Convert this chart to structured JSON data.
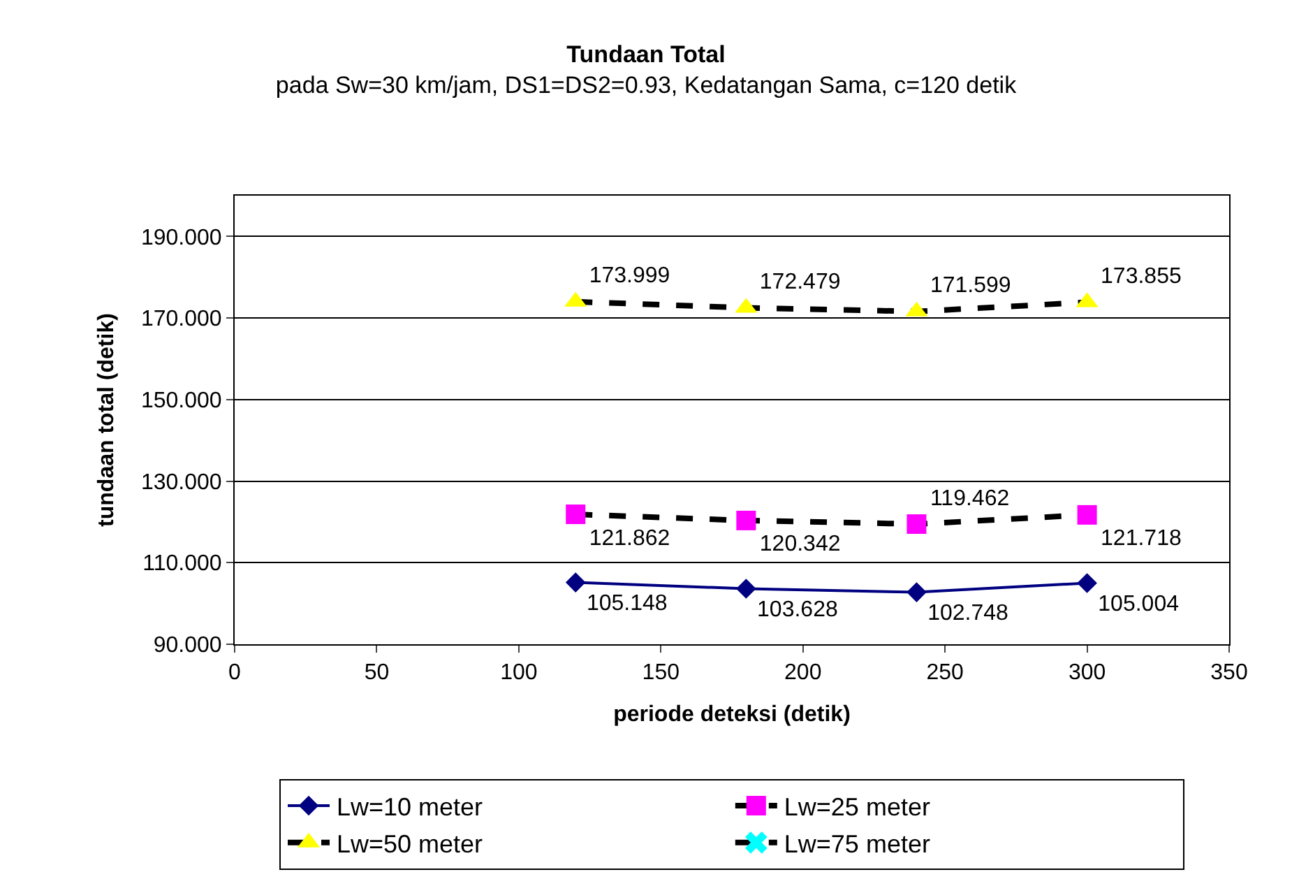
{
  "chart_data": {
    "type": "line",
    "title": "Tundaan Total",
    "subtitle": "pada Sw=30 km/jam, DS1=DS2=0.93, Kedatangan Sama, c=120 detik",
    "xlabel": "periode deteksi (detik)",
    "ylabel": "tundaan total (detik)",
    "x": [
      120,
      180,
      240,
      300
    ],
    "series": [
      {
        "name": "Lw=10 meter",
        "color": "#000080",
        "colors": [
          "#000080",
          "#000080",
          "#000080",
          "#000080"
        ],
        "marker": "diamond",
        "line_style": "solid",
        "values": [
          105.148,
          103.628,
          102.748,
          105.004
        ]
      },
      {
        "name": "Lw=25 meter",
        "color": "#000000",
        "colors": [
          "#ff00ff",
          "#ff00ff",
          "#ff00ff",
          "#ff00ff"
        ],
        "marker": "square",
        "line_style": "dashed",
        "values": [
          121.862,
          120.342,
          119.462,
          121.718
        ]
      },
      {
        "name": "Lw=50 meter",
        "color": "#000000",
        "colors": [
          "#ffff00",
          "#ffff00",
          "#ffff00",
          "#ffff00"
        ],
        "marker": "triangle",
        "line_style": "dashed",
        "values": [
          173.999,
          172.479,
          171.599,
          173.855
        ]
      },
      {
        "name": "Lw=75 meter",
        "color": "#000000",
        "colors": [
          "#00ffff",
          "#00ffff",
          "#00ffff",
          "#00ffff"
        ],
        "marker": "cross",
        "line_style": "dashed",
        "values": [
          null,
          null,
          null,
          null
        ]
      }
    ],
    "data_labels": true,
    "xlim": [
      0,
      350
    ],
    "xticks": [
      0,
      50,
      100,
      150,
      200,
      250,
      300,
      350
    ],
    "ylim": [
      90,
      200
    ],
    "yticks": [
      {
        "value": 90,
        "label": "90.000"
      },
      {
        "value": 110,
        "label": "110.000"
      },
      {
        "value": 130,
        "label": "130.000"
      },
      {
        "value": 150,
        "label": "150.000"
      },
      {
        "value": 170,
        "label": "170.000"
      },
      {
        "value": 190,
        "label": "190.000"
      }
    ],
    "grid": "y",
    "legend": "bottom"
  }
}
